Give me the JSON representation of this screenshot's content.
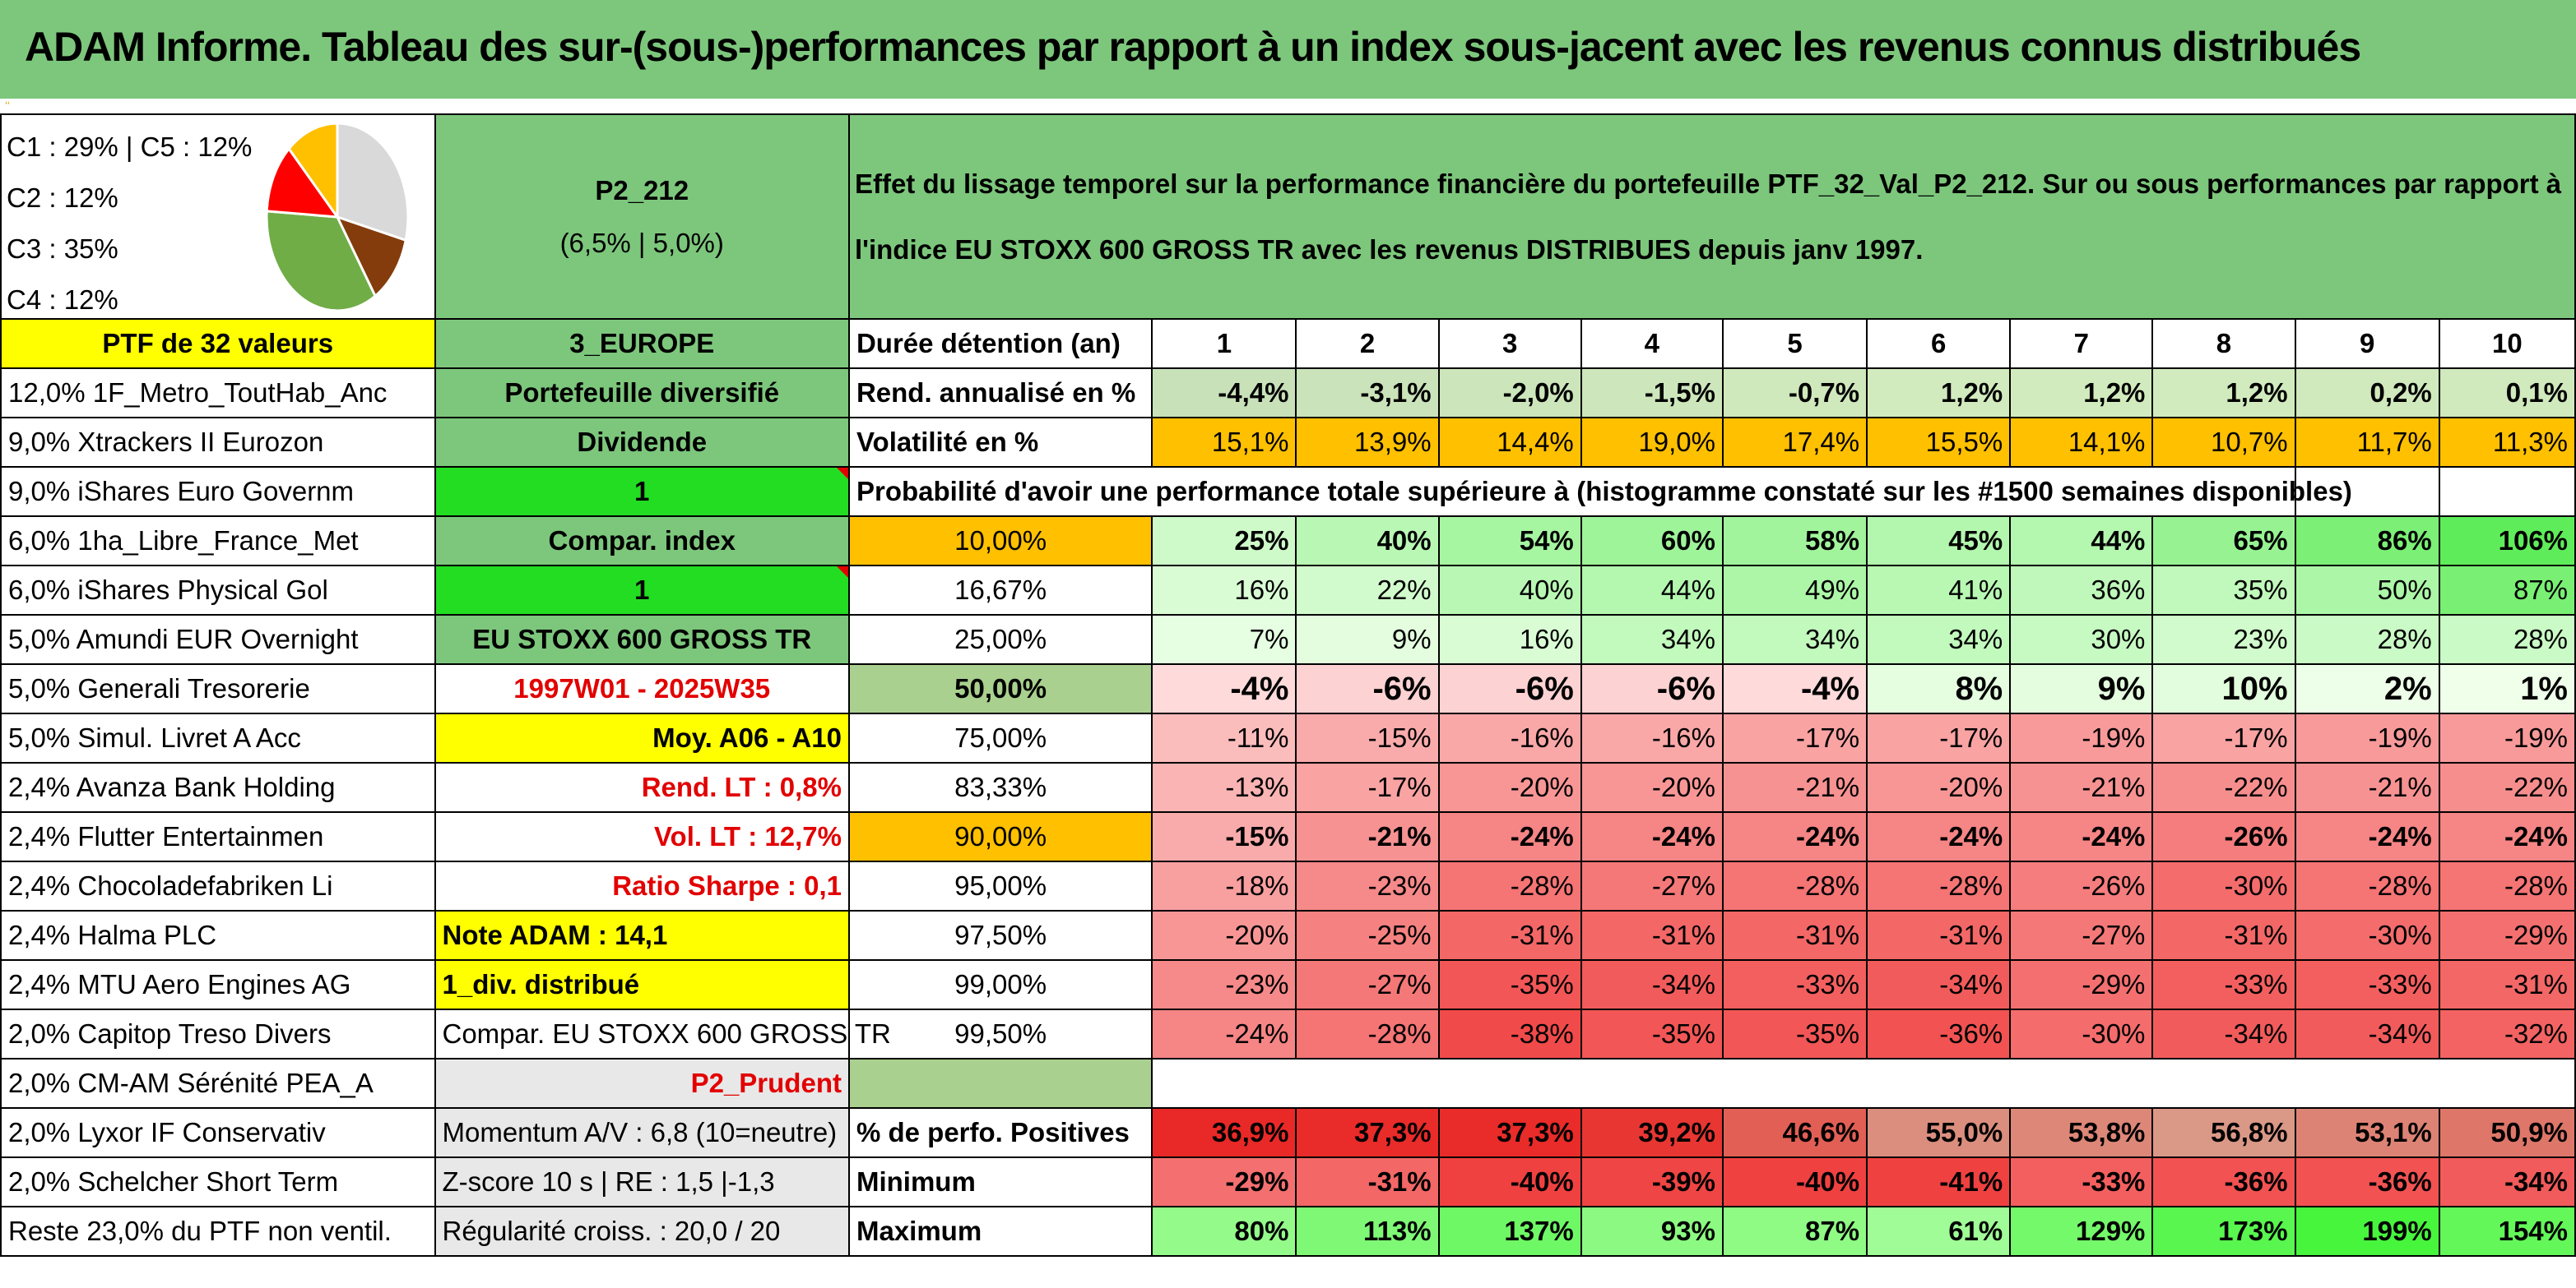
{
  "title": "ADAM Informe. Tableau des sur-(sous-)performances par rapport à un index sous-jacent avec les revenus connus distribués",
  "allocation": {
    "lines": [
      "C1 : 29% | C5 : 12%",
      "C2 : 12%",
      "C3 : 35%",
      "C4 : 12%"
    ],
    "pie": [
      {
        "label": "C1",
        "percent": 29,
        "color": "#d9d9d9"
      },
      {
        "label": "C2",
        "percent": 12,
        "color": "#843c0c"
      },
      {
        "label": "C3",
        "percent": 35,
        "color": "#70ad47"
      },
      {
        "label": "C4",
        "percent": 12,
        "color": "#ff0000"
      },
      {
        "label": "C5",
        "percent": 12,
        "color": "#ffc000"
      }
    ]
  },
  "portfolio": {
    "name": "P2_212",
    "rates": "(6,5% | 5,0%)"
  },
  "description": "Effet du lissage temporel sur la performance financière du portefeuille PTF_32_Val_P2_212. Sur ou sous performances par rapport à l'indice EU STOXX 600 GROSS TR avec les revenus DISTRIBUES depuis janv 1997.",
  "holdings": [
    "PTF de 32 valeurs",
    "12,0% 1F_Metro_ToutHab_Anc",
    "9,0% Xtrackers II Eurozon",
    "9,0% iShares Euro Governm",
    "6,0% 1ha_Libre_France_Met",
    "6,0% iShares Physical Gol",
    "5,0% Amundi EUR Overnight",
    "5,0% Generali Tresorerie",
    "5,0% Simul. Livret A Acc",
    "2,4% Avanza Bank Holding",
    "2,4% Flutter Entertainmen",
    "2,4% Chocoladefabriken Li",
    "2,4% Halma PLC",
    "2,4% MTU Aero Engines AG",
    "2,0% Capitop Treso Divers",
    "2,0% CM-AM Sérénité PEA_A",
    "2,0% Lyxor IF Conservativ",
    "2,0% Schelcher Short Term",
    "Reste 23,0% du PTF non ventil."
  ],
  "info": [
    "3_EUROPE",
    "Portefeuille diversifié",
    "Dividende",
    "1",
    "Compar. index",
    "1",
    "EU STOXX 600 GROSS TR",
    "1997W01 - 2025W35",
    "Moy. A06 - A10",
    "Rend. LT : 0,8%",
    "Vol. LT : 12,7%",
    "Ratio Sharpe : 0,1",
    "Note ADAM : 14,1",
    "1_div. distribué",
    "Compar. EU STOXX 600 GROSS TR",
    "P2_Prudent",
    "Momentum A/V : 6,8 (10=neutre)",
    "Z-score 10 s | RE : 1,5 |-1,3",
    "Régularité croiss. : 20,0 / 20"
  ],
  "table": {
    "horizon_label": "Durée détention (an)",
    "years": [
      "1",
      "2",
      "3",
      "4",
      "5",
      "6",
      "7",
      "8",
      "9",
      "10"
    ],
    "return_label": "Rend. annualisé en %",
    "returns": [
      "-4,4%",
      "-3,1%",
      "-2,0%",
      "-1,5%",
      "-0,7%",
      "1,2%",
      "1,2%",
      "1,2%",
      "0,2%",
      "0,1%"
    ],
    "vol_label": "Volatilité en %",
    "vol": [
      "15,1%",
      "13,9%",
      "14,4%",
      "19,0%",
      "17,4%",
      "15,5%",
      "14,1%",
      "10,7%",
      "11,7%",
      "11,3%"
    ],
    "proba_title": "Probabilité d'avoir une performance totale supérieure à (histogramme constaté sur les #1500 semaines disponibles)",
    "quantiles": [
      {
        "label": "10,00%",
        "values": [
          "25%",
          "40%",
          "54%",
          "60%",
          "58%",
          "45%",
          "44%",
          "65%",
          "86%",
          "106%"
        ]
      },
      {
        "label": "16,67%",
        "values": [
          "16%",
          "22%",
          "40%",
          "44%",
          "49%",
          "41%",
          "36%",
          "35%",
          "50%",
          "87%"
        ]
      },
      {
        "label": "25,00%",
        "values": [
          "7%",
          "9%",
          "16%",
          "34%",
          "34%",
          "34%",
          "30%",
          "23%",
          "28%",
          "28%"
        ]
      },
      {
        "label": "50,00%",
        "values": [
          "-4%",
          "-6%",
          "-6%",
          "-6%",
          "-4%",
          "8%",
          "9%",
          "10%",
          "2%",
          "1%"
        ]
      },
      {
        "label": "75,00%",
        "values": [
          "-11%",
          "-15%",
          "-16%",
          "-16%",
          "-17%",
          "-17%",
          "-19%",
          "-17%",
          "-19%",
          "-19%"
        ]
      },
      {
        "label": "83,33%",
        "values": [
          "-13%",
          "-17%",
          "-20%",
          "-20%",
          "-21%",
          "-20%",
          "-21%",
          "-22%",
          "-21%",
          "-22%"
        ]
      },
      {
        "label": "90,00%",
        "values": [
          "-15%",
          "-21%",
          "-24%",
          "-24%",
          "-24%",
          "-24%",
          "-24%",
          "-26%",
          "-24%",
          "-24%"
        ]
      },
      {
        "label": "95,00%",
        "values": [
          "-18%",
          "-23%",
          "-28%",
          "-27%",
          "-28%",
          "-28%",
          "-26%",
          "-30%",
          "-28%",
          "-28%"
        ]
      },
      {
        "label": "97,50%",
        "values": [
          "-20%",
          "-25%",
          "-31%",
          "-31%",
          "-31%",
          "-31%",
          "-27%",
          "-31%",
          "-30%",
          "-29%"
        ]
      },
      {
        "label": "99,00%",
        "values": [
          "-23%",
          "-27%",
          "-35%",
          "-34%",
          "-33%",
          "-34%",
          "-29%",
          "-33%",
          "-33%",
          "-31%"
        ]
      },
      {
        "label": "99,50%",
        "values": [
          "-24%",
          "-28%",
          "-38%",
          "-35%",
          "-35%",
          "-36%",
          "-30%",
          "-34%",
          "-34%",
          "-32%"
        ]
      }
    ],
    "pos_label": "% de perfo. Positives",
    "pos": [
      "36,9%",
      "37,3%",
      "37,3%",
      "39,2%",
      "46,6%",
      "55,0%",
      "53,8%",
      "56,8%",
      "53,1%",
      "50,9%"
    ],
    "min_label": "Minimum",
    "min": [
      "-29%",
      "-31%",
      "-40%",
      "-39%",
      "-40%",
      "-41%",
      "-33%",
      "-36%",
      "-36%",
      "-34%"
    ],
    "max_label": "Maximum",
    "max": [
      "80%",
      "113%",
      "137%",
      "93%",
      "87%",
      "61%",
      "129%",
      "173%",
      "199%",
      "154%"
    ]
  }
}
